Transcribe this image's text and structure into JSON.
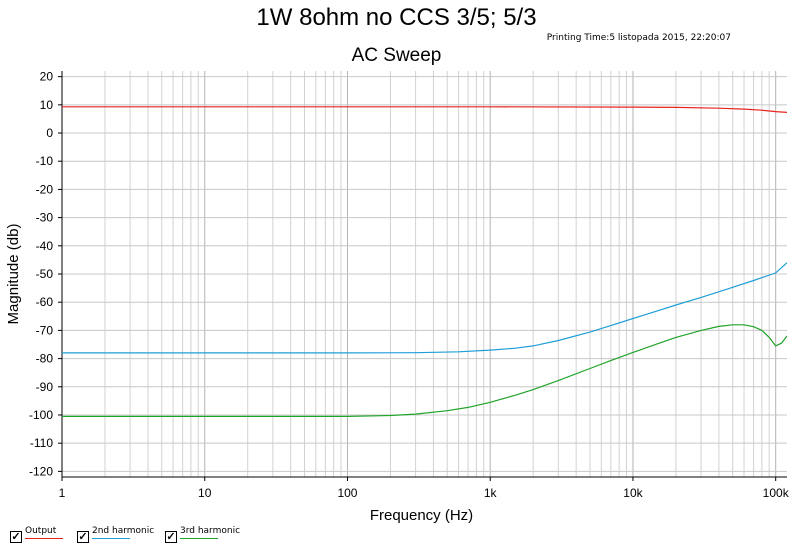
{
  "page": {
    "title": "1W 8ohm no CCS 3/5; 5/3",
    "print_time": "Printing Time:5 listopada 2015, 22:20:07",
    "subtitle": "AC Sweep"
  },
  "chart_data": {
    "type": "line",
    "title": "AC Sweep",
    "xlabel": "Frequency (Hz)",
    "ylabel": "Magnitude (db)",
    "xscale": "log",
    "xlim": [
      1,
      120000
    ],
    "ylim": [
      -122,
      22
    ],
    "grid": true,
    "legend_position": "bottom-left",
    "x_ticks": [
      {
        "value": 1,
        "label": "1"
      },
      {
        "value": 10,
        "label": "10"
      },
      {
        "value": 100,
        "label": "100"
      },
      {
        "value": 1000,
        "label": "1k"
      },
      {
        "value": 10000,
        "label": "10k"
      },
      {
        "value": 100000,
        "label": "100k"
      }
    ],
    "y_ticks": [
      {
        "value": 20,
        "label": "20"
      },
      {
        "value": 10,
        "label": "10"
      },
      {
        "value": 0,
        "label": "0"
      },
      {
        "value": -10,
        "label": "-10"
      },
      {
        "value": -20,
        "label": "-20"
      },
      {
        "value": -30,
        "label": "-30"
      },
      {
        "value": -40,
        "label": "-40"
      },
      {
        "value": -50,
        "label": "-50"
      },
      {
        "value": -60,
        "label": "-60"
      },
      {
        "value": -70,
        "label": "-70"
      },
      {
        "value": -80,
        "label": "-80"
      },
      {
        "value": -90,
        "label": "-90"
      },
      {
        "value": -100,
        "label": "-100"
      },
      {
        "value": -110,
        "label": "-110"
      },
      {
        "value": -120,
        "label": "-120"
      }
    ],
    "series": [
      {
        "name": "Output",
        "color": "#e8231e",
        "x": [
          1,
          10,
          100,
          1000,
          10000,
          20000,
          40000,
          60000,
          80000,
          100000,
          120000
        ],
        "y": [
          9.3,
          9.3,
          9.3,
          9.3,
          9.2,
          9.1,
          8.8,
          8.5,
          8.1,
          7.6,
          7.3
        ]
      },
      {
        "name": "2nd harmonic",
        "color": "#1f9ed8",
        "x": [
          1,
          10,
          100,
          300,
          600,
          1000,
          1500,
          2000,
          3000,
          5000,
          7000,
          10000,
          15000,
          20000,
          30000,
          50000,
          70000,
          100000,
          120000
        ],
        "y": [
          -78,
          -78,
          -78,
          -77.9,
          -77.6,
          -77,
          -76.3,
          -75.5,
          -73.6,
          -70.6,
          -68.3,
          -65.8,
          -63,
          -61,
          -58.3,
          -54.7,
          -52.3,
          -49.6,
          -46
        ]
      },
      {
        "name": "3rd harmonic",
        "color": "#1fa329",
        "x": [
          1,
          10,
          100,
          200,
          300,
          500,
          700,
          1000,
          1500,
          2000,
          3000,
          5000,
          7000,
          10000,
          15000,
          20000,
          30000,
          40000,
          50000,
          60000,
          70000,
          80000,
          90000,
          100000,
          110000,
          120000
        ],
        "y": [
          -100.5,
          -100.5,
          -100.5,
          -100.2,
          -99.7,
          -98.5,
          -97.3,
          -95.5,
          -93,
          -91,
          -87.8,
          -83.5,
          -80.7,
          -77.8,
          -74.7,
          -72.5,
          -70,
          -68.6,
          -68,
          -68,
          -68.7,
          -70,
          -72.5,
          -75.5,
          -74.5,
          -72
        ]
      }
    ]
  },
  "legend": {
    "items": [
      {
        "label": "Output",
        "color": "#e8231e",
        "checked": "✓"
      },
      {
        "label": "2nd harmonic",
        "color": "#1f9ed8",
        "checked": "✓"
      },
      {
        "label": "3rd harmonic",
        "color": "#1fa329",
        "checked": "✓"
      }
    ]
  }
}
